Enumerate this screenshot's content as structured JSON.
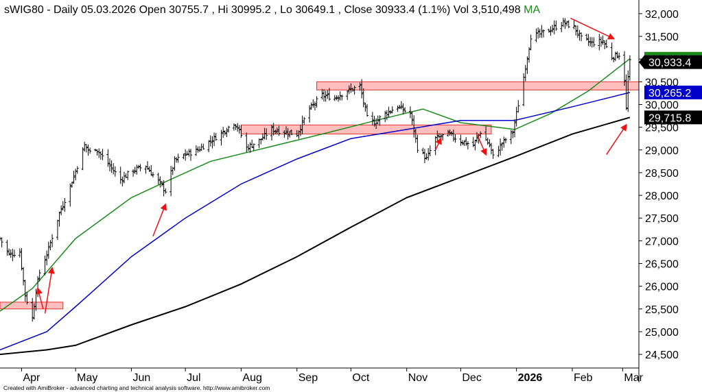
{
  "header": {
    "symbol": "sWIG80",
    "period": "Daily",
    "date": "05.03.2026",
    "open_label": "Open",
    "open": "30755.7",
    "hi_label": "Hi",
    "hi": "30995.2",
    "lo_label": "Lo",
    "lo": "30649.1",
    "close_label": "Close",
    "close": "30933.4",
    "change": "(1.1%)",
    "vol_label": "Vol",
    "vol": "3,510,498",
    "ma_label": "MA"
  },
  "footer": "Created with AmiBroker - advanced charting and technical analysis software. http://www.amibroker.com",
  "colors": {
    "price": "#000000",
    "ma_green": "#1a8a1a",
    "ma_blue": "#0000cc",
    "ma_black": "#000000",
    "zone_fill": "#ffb3b3",
    "zone_stroke": "#e03030",
    "arrow": "#ee1111"
  },
  "chart_data": {
    "type": "line",
    "title": "",
    "ylim": [
      24200,
      32300
    ],
    "y_ticks": [
      "24,500",
      "25,000",
      "25,500",
      "26,000",
      "26,500",
      "27,000",
      "27,500",
      "28,000",
      "28,500",
      "29,000",
      "29,500",
      "30,000",
      "30,500",
      "31,000",
      "31,500",
      "32,000"
    ],
    "x_labels": [
      "Apr",
      "May",
      "Jun",
      "Jul",
      "Aug",
      "Sep",
      "Oct",
      "Nov",
      "Dec",
      "2026",
      "Feb",
      "Mar"
    ],
    "x_label_dates": [
      "2025-04-01",
      "2025-05-01",
      "2025-06-01",
      "2025-07-01",
      "2025-08-01",
      "2025-09-01",
      "2025-10-01",
      "2025-11-01",
      "2025-12-01",
      "2026-01-01",
      "2026-02-01",
      "2026-03-01"
    ],
    "x_range": [
      "2025-03-20",
      "2026-03-10"
    ],
    "price_series": {
      "name": "",
      "dates": [
        "2025-03-20",
        "2025-03-25",
        "2025-03-31",
        "2025-04-03",
        "2025-04-07",
        "2025-04-09",
        "2025-04-11",
        "2025-04-15",
        "2025-04-22",
        "2025-04-28",
        "2025-05-06",
        "2025-05-09",
        "2025-05-12",
        "2025-05-19",
        "2025-05-26",
        "2025-06-02",
        "2025-06-09",
        "2025-06-16",
        "2025-06-20",
        "2025-06-25",
        "2025-07-01",
        "2025-07-08",
        "2025-07-15",
        "2025-07-22",
        "2025-07-28",
        "2025-07-30",
        "2025-08-04",
        "2025-08-11",
        "2025-08-18",
        "2025-08-25",
        "2025-09-01",
        "2025-09-08",
        "2025-09-15",
        "2025-09-22",
        "2025-09-29",
        "2025-10-06",
        "2025-10-10",
        "2025-10-14",
        "2025-10-20",
        "2025-10-27",
        "2025-11-03",
        "2025-11-07",
        "2025-11-12",
        "2025-11-17",
        "2025-11-24",
        "2025-12-01",
        "2025-12-08",
        "2025-12-12",
        "2025-12-17",
        "2025-12-19",
        "2025-12-23",
        "2025-12-30",
        "2026-01-05",
        "2026-01-09",
        "2026-01-14",
        "2026-01-20",
        "2026-01-27",
        "2026-02-02",
        "2026-02-06",
        "2026-02-12",
        "2026-02-18",
        "2026-02-23",
        "2026-02-27",
        "2026-03-02",
        "2026-03-03",
        "2026-03-04",
        "2026-03-05"
      ],
      "close": [
        27050,
        26700,
        26750,
        25800,
        25300,
        25900,
        26300,
        26700,
        27600,
        28200,
        29100,
        28950,
        29050,
        28700,
        28350,
        28550,
        28650,
        28300,
        28100,
        28750,
        28900,
        29000,
        29200,
        29400,
        29600,
        29500,
        29050,
        29200,
        29450,
        29400,
        29350,
        29900,
        30200,
        30150,
        30300,
        30400,
        29700,
        29600,
        29800,
        29950,
        29800,
        29050,
        28800,
        29250,
        29350,
        29200,
        29100,
        29400,
        29100,
        28850,
        29100,
        29400,
        30600,
        31500,
        31550,
        31650,
        31800,
        31700,
        31450,
        31350,
        31400,
        31050,
        31100,
        30550,
        29900,
        30600,
        30933
      ]
    },
    "series": [
      {
        "name": "",
        "color": "green",
        "last_value": "31,006.6",
        "dates": [
          "2025-03-20",
          "2025-04-07",
          "2025-05-01",
          "2025-06-01",
          "2025-06-20",
          "2025-07-15",
          "2025-08-15",
          "2025-09-15",
          "2025-10-15",
          "2025-11-10",
          "2025-12-01",
          "2025-12-31",
          "2026-01-20",
          "2026-02-10",
          "2026-03-05"
        ],
        "values": [
          25450,
          25950,
          27050,
          27950,
          28300,
          28750,
          29050,
          29350,
          29650,
          29900,
          29600,
          29450,
          29800,
          30300,
          31006.6
        ]
      },
      {
        "name": "",
        "color": "blue",
        "last_value": "30,265.2",
        "dates": [
          "2025-03-20",
          "2025-04-15",
          "2025-05-01",
          "2025-06-01",
          "2025-07-01",
          "2025-08-01",
          "2025-09-01",
          "2025-10-01",
          "2025-11-01",
          "2025-12-01",
          "2025-12-31",
          "2026-02-01",
          "2026-03-05"
        ],
        "values": [
          24600,
          25000,
          25550,
          26650,
          27500,
          28250,
          28800,
          29250,
          29450,
          29650,
          29650,
          29950,
          30265.2
        ]
      },
      {
        "name": "",
        "color": "black",
        "last_value": "29,715.8",
        "dates": [
          "2025-03-20",
          "2025-04-15",
          "2025-05-01",
          "2025-06-01",
          "2025-07-01",
          "2025-08-01",
          "2025-09-01",
          "2025-10-01",
          "2025-11-01",
          "2025-12-01",
          "2025-12-31",
          "2026-02-01",
          "2026-03-05"
        ],
        "values": [
          24500,
          24600,
          24700,
          25150,
          25550,
          26050,
          26650,
          27300,
          27950,
          28400,
          28850,
          29350,
          29715.8
        ]
      }
    ],
    "last_close_label": "30,933.4",
    "zones": [
      {
        "start": "2025-03-20",
        "end": "2025-04-24",
        "y_low": 25500,
        "y_high": 25650
      },
      {
        "start": "2025-08-01",
        "end": "2025-12-18",
        "y_low": 29350,
        "y_high": 29550
      },
      {
        "start": "2025-09-12",
        "end": "2026-03-10",
        "y_low": 30320,
        "y_high": 30500
      }
    ],
    "arrows": [
      {
        "from_date": "2025-04-14",
        "from_y": 25400,
        "to_date": "2025-04-18",
        "to_y": 26400
      },
      {
        "from_date": "2025-04-13",
        "from_y": 25500,
        "to_date": "2025-04-10",
        "to_y": 25950
      },
      {
        "from_date": "2025-06-13",
        "from_y": 27100,
        "to_date": "2025-06-20",
        "to_y": 27800
      },
      {
        "from_date": "2025-11-17",
        "from_y": 29000,
        "to_date": "2025-11-20",
        "to_y": 29250
      },
      {
        "from_date": "2025-12-10",
        "from_y": 29350,
        "to_date": "2025-12-15",
        "to_y": 28900
      },
      {
        "from_date": "2026-01-31",
        "from_y": 31900,
        "to_date": "2026-02-24",
        "to_y": 31450
      },
      {
        "from_date": "2026-02-20",
        "from_y": 28900,
        "to_date": "2026-03-03",
        "to_y": 29550
      }
    ]
  }
}
